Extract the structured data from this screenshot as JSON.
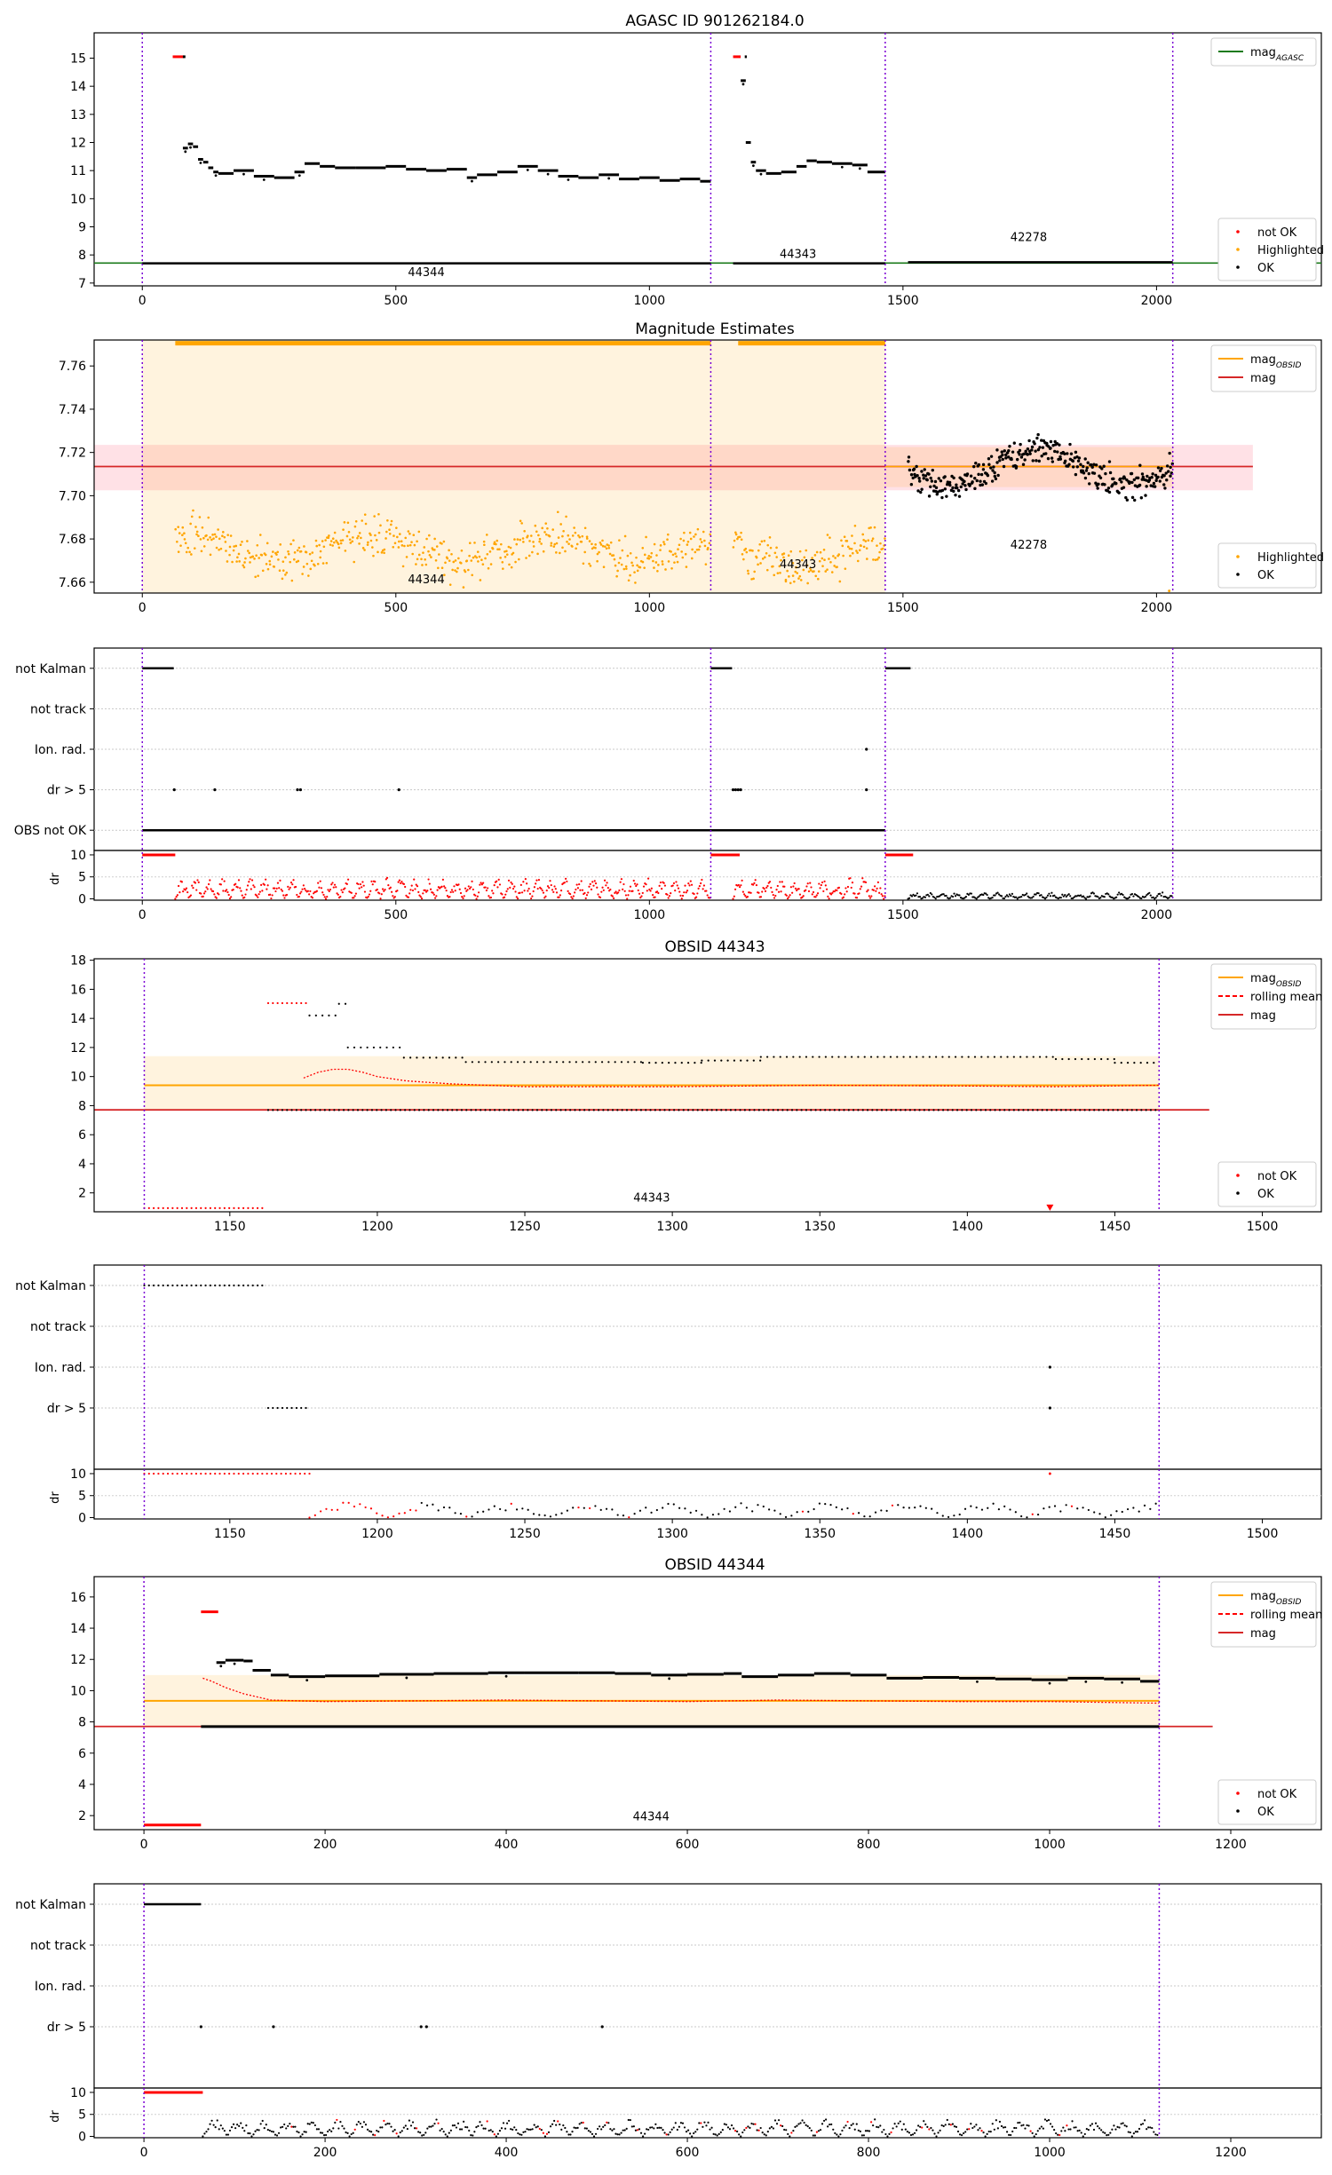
{
  "figure": {
    "title": "AGASC ID 901262184.0"
  },
  "chart_data": [
    {
      "id": "p1",
      "type": "scatter",
      "title": "AGASC ID 901262184.0",
      "xlim": [
        -95,
        2325
      ],
      "ylim": [
        6.9,
        15.9
      ],
      "xticks": [
        0,
        500,
        1000,
        1500,
        2000
      ],
      "yticks": [
        7,
        8,
        9,
        10,
        11,
        12,
        13,
        14,
        15
      ],
      "vlines": [
        0,
        1121,
        1465,
        2032
      ],
      "legend_lines": [
        {
          "label": "mag_AGASC",
          "color": "#1a7a1a",
          "style": "solid"
        }
      ],
      "legend_marks": [
        {
          "label": "not OK",
          "color": "#ff0000"
        },
        {
          "label": "Highlighted",
          "color": "#ffa500"
        },
        {
          "label": "OK",
          "color": "#000000"
        }
      ],
      "hlines": [
        {
          "y": 7.71,
          "color": "#1a7a1a"
        }
      ],
      "annotations": [
        {
          "text": "44344",
          "x": 560,
          "y": 7.25
        },
        {
          "text": "44343",
          "x": 1293,
          "y": 7.9
        },
        {
          "text": "42278",
          "x": 1748,
          "y": 8.5
        }
      ],
      "segments": [
        {
          "x0": 60,
          "x1": 82,
          "y": 15.05,
          "color": "#ff0000"
        },
        {
          "x0": 80,
          "x1": 85,
          "y": 15.05,
          "color": "#000000"
        },
        {
          "x0": 1165,
          "x1": 1180,
          "y": 15.05,
          "color": "#ff0000"
        },
        {
          "x0": 1188,
          "x1": 1192,
          "y": 15.05,
          "color": "#000000"
        },
        {
          "x0": 0,
          "x1": 1121,
          "y": 7.7,
          "color": "#000000"
        },
        {
          "x0": 1165,
          "x1": 1465,
          "y": 7.7,
          "color": "#000000"
        },
        {
          "x0": 1510,
          "x1": 2032,
          "y": 7.74,
          "color": "#000000"
        }
      ],
      "steps": [
        {
          "x": [
            80,
            90,
            100,
            110,
            120,
            130,
            140,
            150,
            180,
            220,
            260,
            300,
            320,
            350,
            380,
            420,
            480,
            520,
            560,
            600,
            640,
            660,
            700,
            740,
            780,
            820,
            860,
            900,
            940,
            980,
            1020,
            1060,
            1100,
            1121
          ],
          "y": [
            11.8,
            11.95,
            11.85,
            11.4,
            11.3,
            11.1,
            10.95,
            10.9,
            11.0,
            10.8,
            10.75,
            10.95,
            11.25,
            11.15,
            11.1,
            11.1,
            11.15,
            11.05,
            11.0,
            11.05,
            10.75,
            10.85,
            10.95,
            11.15,
            11.0,
            10.8,
            10.75,
            10.85,
            10.7,
            10.75,
            10.65,
            10.7,
            10.62,
            10.6
          ]
        },
        {
          "x": [
            1180,
            1190,
            1200,
            1210,
            1230,
            1260,
            1290,
            1310,
            1330,
            1360,
            1400,
            1430,
            1465
          ],
          "y": [
            14.2,
            12.0,
            11.3,
            11.0,
            10.9,
            10.95,
            11.15,
            11.35,
            11.3,
            11.25,
            11.2,
            10.95,
            11.05
          ]
        }
      ]
    },
    {
      "id": "p2",
      "type": "scatter",
      "title": "Magnitude Estimates",
      "xlim": [
        -95,
        2325
      ],
      "ylim": [
        7.655,
        7.772
      ],
      "xticks": [
        0,
        500,
        1000,
        1500,
        2000
      ],
      "yticks": [
        7.66,
        7.68,
        7.7,
        7.72,
        7.74,
        7.76
      ],
      "ytick_labels": [
        "7.66",
        "7.68",
        "7.70",
        "7.72",
        "7.74",
        "7.76"
      ],
      "vlines": [
        0,
        1121,
        1465,
        2032
      ],
      "legend_lines": [
        {
          "label": "mag_OBSID",
          "color": "#ffa500",
          "style": "solid"
        },
        {
          "label": "mag",
          "color": "#d62728",
          "style": "solid"
        }
      ],
      "legend_marks": [
        {
          "label": "Highlighted",
          "color": "#ffa500"
        },
        {
          "label": "OK",
          "color": "#000000"
        }
      ],
      "mag": 7.7135,
      "mag_band": [
        7.7025,
        7.7235
      ],
      "obsid_spans": [
        {
          "x0": 0,
          "x1": 1465,
          "y0": 7.655,
          "y1": 7.772,
          "mean": 7.7705
        },
        {
          "x0": 1465,
          "x1": 2032,
          "y0": 7.704,
          "y1": 7.7225,
          "mean": 7.7135
        }
      ],
      "mean_segments": [
        {
          "x0": 65,
          "x1": 1121,
          "y": 7.7705
        },
        {
          "x0": 1175,
          "x1": 1465,
          "y": 7.7705
        }
      ],
      "annotations": [
        {
          "text": "44344",
          "x": 560,
          "y": 7.6595
        },
        {
          "text": "44343",
          "x": 1293,
          "y": 7.6665
        },
        {
          "text": "42278",
          "x": 1748,
          "y": 7.6755
        }
      ],
      "clouds": [
        {
          "x0": 65,
          "x1": 1121,
          "n": 520,
          "base": 7.676,
          "amp": 0.006,
          "noise": 0.014,
          "color": "#ffa500"
        },
        {
          "x0": 1165,
          "x1": 1465,
          "n": 150,
          "base": 7.673,
          "amp": 0.006,
          "noise": 0.014,
          "color": "#ffa500"
        },
        {
          "x0": 1510,
          "x1": 2032,
          "n": 330,
          "base": 7.713,
          "amp": 0.008,
          "noise": 0.01,
          "color": "#000000"
        }
      ]
    },
    {
      "id": "p3",
      "type": "scatter",
      "xlim": [
        -95,
        2325
      ],
      "ylim": [
        -0.5,
        6.5
      ],
      "xticks": [
        0,
        500,
        1000,
        1500,
        2000
      ],
      "categories": [
        "not Kalman",
        "not track",
        "Ion. rad.",
        "dr > 5",
        "OBS not OK"
      ],
      "dr_ylim": [
        -0.3,
        11
      ],
      "dr_yticks": [
        0,
        5,
        10
      ],
      "dr_ylabel": "dr",
      "vlines": [
        0,
        1121,
        1465,
        2032
      ],
      "flag_segments": [
        {
          "cat": "not Kalman",
          "x0": 0,
          "x1": 62
        },
        {
          "cat": "not Kalman",
          "x0": 1121,
          "x1": 1163
        },
        {
          "cat": "not Kalman",
          "x0": 1465,
          "x1": 1515
        },
        {
          "cat": "OBS not OK",
          "x0": 0,
          "x1": 1465
        }
      ],
      "flag_points": [
        {
          "cat": "dr > 5",
          "x": [
            63,
            143,
            306,
            312,
            506,
            1165,
            1170,
            1175,
            1180,
            1428
          ]
        },
        {
          "cat": "Ion. rad.",
          "x": [
            1428
          ]
        }
      ]
    },
    {
      "id": "p4",
      "type": "scatter",
      "title": "OBSID 44343",
      "xlim": [
        1104,
        1520
      ],
      "ylim": [
        0.7,
        18.1
      ],
      "xticks": [
        1150,
        1200,
        1250,
        1300,
        1350,
        1400,
        1450,
        1500
      ],
      "yticks": [
        2,
        4,
        6,
        8,
        10,
        12,
        14,
        16,
        18
      ],
      "vlines": [
        1121,
        1465
      ],
      "legend_lines": [
        {
          "label": "mag_OBSID",
          "color": "#ffa500",
          "style": "solid"
        },
        {
          "label": "rolling mean",
          "color": "#ff0000",
          "style": "dashed"
        },
        {
          "label": "mag",
          "color": "#d62728",
          "style": "solid"
        }
      ],
      "legend_marks": [
        {
          "label": "not OK",
          "color": "#ff0000"
        },
        {
          "label": "OK",
          "color": "#000000"
        }
      ],
      "mag": 7.71,
      "mag_xmax": 1482,
      "obsid_band": [
        7.7,
        11.4
      ],
      "obsid_mean": 9.4,
      "obsid_x": [
        1121,
        1465
      ],
      "annotations": [
        {
          "text": "44343",
          "x": 1293,
          "y": 1.4
        }
      ],
      "rolling_mean": {
        "x": [
          1175,
          1180,
          1185,
          1190,
          1195,
          1200,
          1210,
          1225,
          1250,
          1300,
          1350,
          1400,
          1430,
          1465
        ],
        "y": [
          9.9,
          10.3,
          10.5,
          10.5,
          10.3,
          10.0,
          9.7,
          9.5,
          9.3,
          9.3,
          9.4,
          9.35,
          9.3,
          9.4
        ]
      },
      "dot_rows": [
        {
          "x0": 1121,
          "x1": 1162,
          "y": 0.95,
          "step": 1.6,
          "color": "#ff0000"
        },
        {
          "x0": 1163,
          "x1": 1177,
          "y": 15.05,
          "step": 1.6,
          "color": "#ff0000"
        },
        {
          "x0": 1163,
          "x1": 1465,
          "y": 7.7,
          "step": 1.6,
          "color": "#000000"
        }
      ],
      "step_dots": {
        "x": [
          1177,
          1187,
          1190,
          1209,
          1230,
          1290,
          1310,
          1330,
          1430,
          1450,
          1465
        ],
        "y": [
          14.2,
          15.0,
          12.0,
          11.3,
          11.0,
          10.95,
          11.1,
          11.35,
          11.2,
          10.95,
          11.05
        ]
      },
      "markers": [
        {
          "x": 1428,
          "y": 0.95,
          "color": "#ff0000"
        }
      ]
    },
    {
      "id": "p5",
      "type": "scatter",
      "xlim": [
        1104,
        1520
      ],
      "ylim": [
        -0.5,
        4.5
      ],
      "xticks": [
        1150,
        1200,
        1250,
        1300,
        1350,
        1400,
        1450,
        1500
      ],
      "categories": [
        "not Kalman",
        "not track",
        "Ion. rad.",
        "dr > 5"
      ],
      "dr_ylim": [
        -0.3,
        11
      ],
      "dr_yticks": [
        0,
        5,
        10
      ],
      "dr_ylabel": "dr",
      "vlines": [
        1121,
        1465
      ],
      "flag_rows": [
        {
          "cat": "not Kalman",
          "x0": 1121,
          "x1": 1161
        },
        {
          "cat": "dr > 5",
          "x0": 1163,
          "x1": 1177
        }
      ],
      "flag_points": [
        {
          "cat": "Ion. rad.",
          "x": [
            1428
          ]
        },
        {
          "cat": "dr > 5",
          "x": [
            1428
          ]
        }
      ],
      "dr_red_row": {
        "x0": 1121,
        "x1": 1177,
        "y": 10
      }
    },
    {
      "id": "p6",
      "type": "scatter",
      "title": "OBSID 44344",
      "xlim": [
        -55,
        1300
      ],
      "ylim": [
        1.1,
        17.3
      ],
      "xticks": [
        0,
        200,
        400,
        600,
        800,
        1000,
        1200
      ],
      "yticks": [
        2,
        4,
        6,
        8,
        10,
        12,
        14,
        16
      ],
      "vlines": [
        0,
        1121
      ],
      "legend_lines": [
        {
          "label": "mag_OBSID",
          "color": "#ffa500",
          "style": "solid"
        },
        {
          "label": "rolling mean",
          "color": "#ff0000",
          "style": "dashed"
        },
        {
          "label": "mag",
          "color": "#d62728",
          "style": "solid"
        }
      ],
      "legend_marks": [
        {
          "label": "not OK",
          "color": "#ff0000"
        },
        {
          "label": "OK",
          "color": "#000000"
        }
      ],
      "mag": 7.71,
      "mag_xmax": 1180,
      "obsid_band": [
        7.7,
        11.0
      ],
      "obsid_mean": 9.35,
      "obsid_x": [
        0,
        1121
      ],
      "annotations": [
        {
          "text": "44344",
          "x": 560,
          "y": 1.7
        }
      ],
      "rolling_mean": {
        "x": [
          65,
          75,
          90,
          110,
          140,
          200,
          300,
          400,
          500,
          600,
          700,
          800,
          900,
          1000,
          1121
        ],
        "y": [
          10.8,
          10.6,
          10.2,
          9.8,
          9.4,
          9.3,
          9.35,
          9.4,
          9.35,
          9.3,
          9.4,
          9.35,
          9.3,
          9.3,
          9.2
        ]
      },
      "segments": [
        {
          "x0": 0,
          "x1": 63,
          "y": 1.4,
          "color": "#ff0000"
        },
        {
          "x0": 63,
          "x1": 82,
          "y": 15.05,
          "color": "#ff0000"
        },
        {
          "x0": 63,
          "x1": 1121,
          "y": 7.7,
          "color": "#000000"
        }
      ],
      "steps": [
        {
          "x": [
            80,
            90,
            110,
            120,
            140,
            160,
            200,
            260,
            320,
            380,
            420,
            480,
            520,
            560,
            600,
            640,
            660,
            700,
            740,
            780,
            820,
            860,
            900,
            940,
            980,
            1020,
            1060,
            1100,
            1121
          ],
          "y": [
            11.8,
            11.95,
            11.9,
            11.3,
            11.0,
            10.9,
            10.95,
            11.05,
            11.1,
            11.15,
            11.15,
            11.15,
            11.1,
            11.0,
            11.05,
            11.1,
            10.9,
            11.0,
            11.1,
            11.0,
            10.8,
            10.85,
            10.8,
            10.75,
            10.7,
            10.8,
            10.75,
            10.6,
            10.6
          ]
        }
      ]
    },
    {
      "id": "p7",
      "type": "scatter",
      "xlim": [
        -55,
        1300
      ],
      "ylim": [
        -0.5,
        4.5
      ],
      "xticks": [
        0,
        200,
        400,
        600,
        800,
        1000,
        1200
      ],
      "categories": [
        "not Kalman",
        "not track",
        "Ion. rad.",
        "dr > 5"
      ],
      "dr_ylim": [
        -0.3,
        11
      ],
      "dr_yticks": [
        0,
        5,
        10
      ],
      "dr_ylabel": "dr",
      "vlines": [
        0,
        1121
      ],
      "flag_segments": [
        {
          "cat": "not Kalman",
          "x0": 0,
          "x1": 63
        }
      ],
      "flag_points": [
        {
          "cat": "dr > 5",
          "x": [
            63,
            143,
            306,
            312,
            506
          ]
        }
      ],
      "dr_red_row": {
        "x0": 0,
        "x1": 65,
        "y": 10
      }
    }
  ]
}
